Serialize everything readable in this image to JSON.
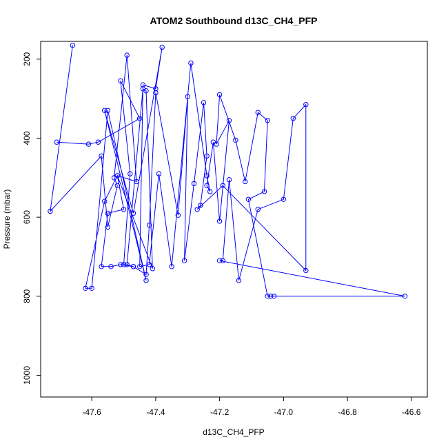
{
  "chart_data": {
    "type": "line",
    "title": "ATOM2 Southbound d13C_CH4_PFP",
    "xlabel": "d13C_CH4_PFP",
    "ylabel": "Pressure (mbar)",
    "xlim": [
      -47.76,
      -46.55
    ],
    "ylim": [
      1055,
      155
    ],
    "y_reversed": true,
    "xticks": [
      "-47.6",
      "-47.4",
      "-47.2",
      "-47.0",
      "-46.8",
      "-46.6"
    ],
    "yticks": [
      "200",
      "400",
      "600",
      "800",
      "1000"
    ],
    "grid": false,
    "series": [
      {
        "color": "#0000ff",
        "marker": "open-circle",
        "x": [
          -47.71,
          -47.61,
          -47.58,
          -47.45,
          -47.51,
          -47.48,
          -47.5,
          -47.47,
          -47.49,
          -47.44,
          -47.43,
          -47.41,
          -47.52,
          -47.56,
          -47.62,
          -47.6,
          -47.55,
          -47.43,
          -47.56,
          -47.47,
          -47.38,
          -47.4,
          -47.44,
          -47.45,
          -47.42,
          -47.39,
          -47.35,
          -47.29,
          -47.24,
          -47.23,
          -47.24,
          -47.22,
          -47.2,
          -47.17,
          -47.21,
          -47.2,
          -47.15,
          -47.12,
          -47.08,
          -47.05,
          -47.06,
          -47.11,
          -47.05,
          -47.04,
          -47.03,
          -46.62,
          -47.2,
          -47.19,
          -47.17,
          -47.14,
          -47.08,
          -47.0,
          -46.97,
          -46.93,
          -46.93,
          -47.19,
          -47.27,
          -47.26,
          -47.24,
          -47.25,
          -47.28,
          -47.31,
          -47.3,
          -47.33,
          -47.4,
          -47.42,
          -47.43,
          -47.47,
          -47.51,
          -47.54,
          -47.57,
          -47.55,
          -47.5,
          -47.52,
          -47.46,
          -47.49,
          -47.53,
          -47.52,
          -47.55,
          -47.57,
          -47.73,
          -47.66
        ],
        "y": [
          410,
          415,
          410,
          350,
          255,
          490,
          720,
          725,
          720,
          275,
          280,
          730,
          495,
          560,
          780,
          780,
          330,
          760,
          330,
          590,
          170,
          275,
          265,
          725,
          720,
          490,
          725,
          210,
          495,
          535,
          520,
          410,
          610,
          355,
          415,
          290,
          405,
          510,
          335,
          355,
          535,
          555,
          800,
          800,
          800,
          800,
          710,
          710,
          505,
          760,
          580,
          555,
          350,
          315,
          735,
          520,
          580,
          570,
          445,
          310,
          515,
          710,
          295,
          595,
          285,
          620,
          745,
          725,
          720,
          725,
          725,
          590,
          580,
          495,
          510,
          190,
          500,
          520,
          625,
          445,
          585,
          165
        ]
      }
    ]
  }
}
